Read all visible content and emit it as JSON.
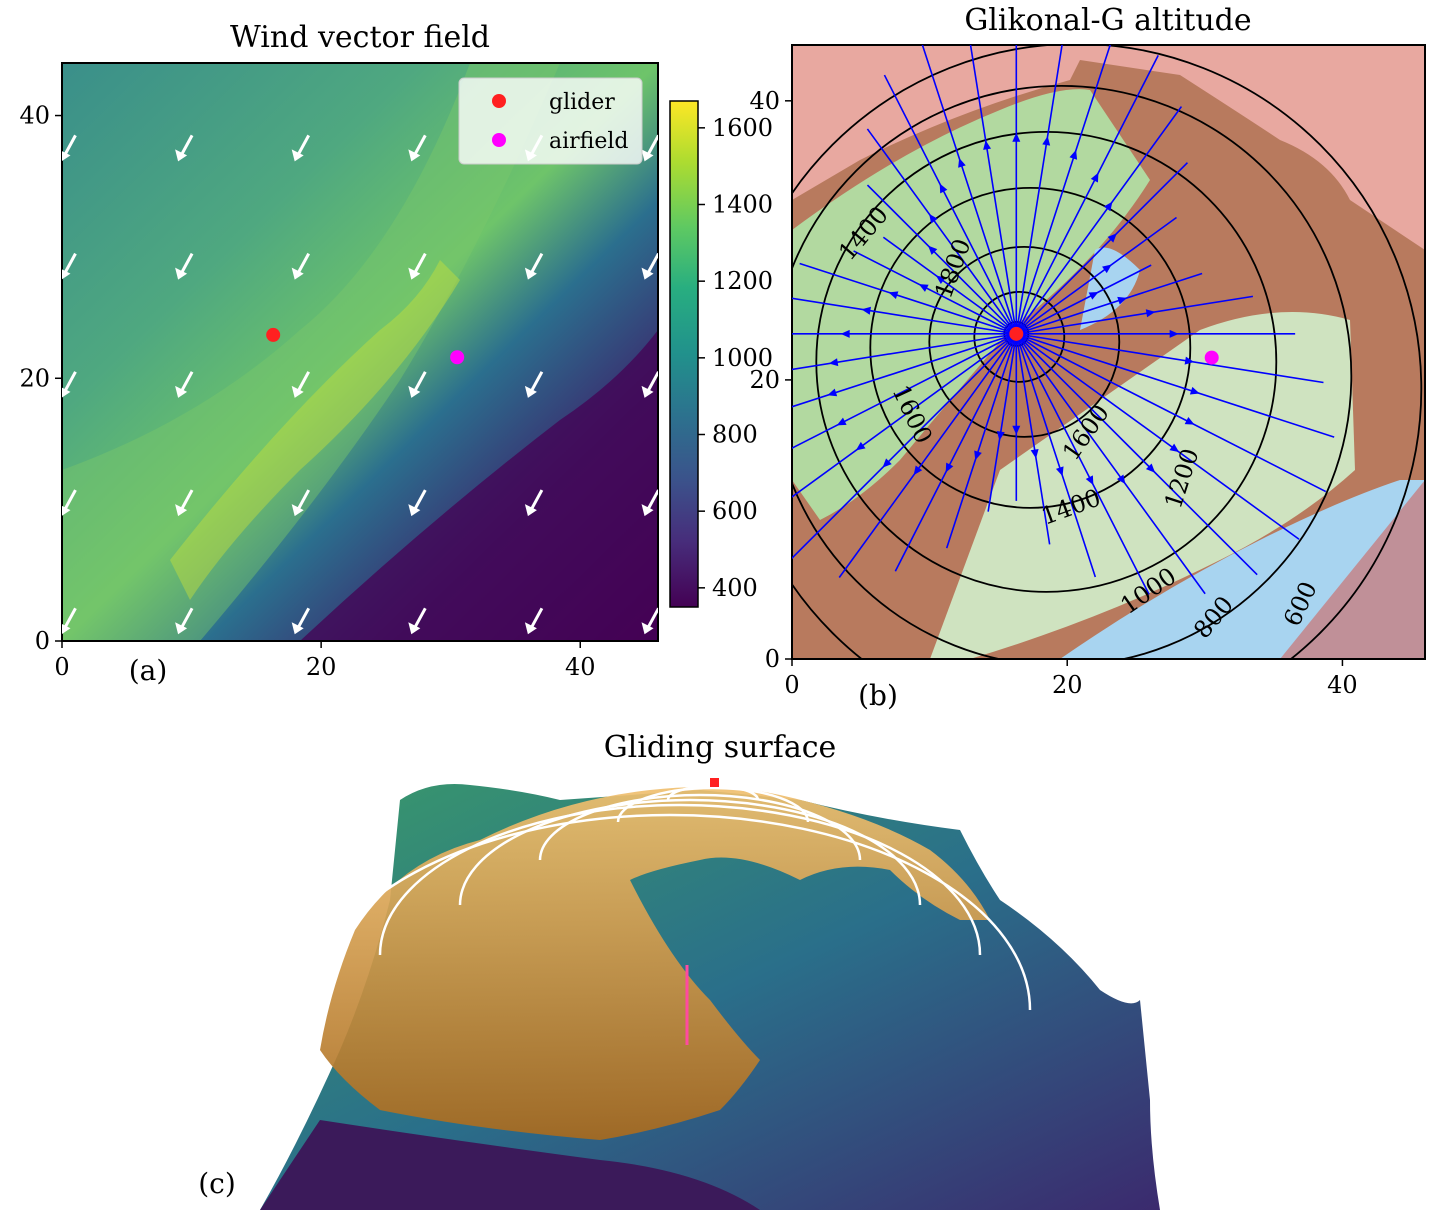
{
  "panels": {
    "a": {
      "title": "Wind vector field",
      "label": "(a)"
    },
    "b": {
      "title": "Glikonal-G altitude",
      "label": "(b)"
    },
    "c": {
      "title": "Gliding surface",
      "label": "(c)"
    }
  },
  "legend": {
    "glider": "glider",
    "airfield": "airfield"
  },
  "colors": {
    "glider": "#ff2020",
    "airfield": "#ff00ff",
    "streamlines": "#0000ff",
    "contours": "#000000",
    "wind_arrows": "#ffffff",
    "surface": "#e0a040",
    "map_forest": "#b2d9a0",
    "map_relief": "#b87a5e",
    "map_urban": "#f0a0a0",
    "lake": "#a8d4f0"
  },
  "chart_data": [
    {
      "panel": "a",
      "type": "heatmap",
      "title": "Wind vector field",
      "colormap": "viridis",
      "xlim": [
        0,
        46
      ],
      "ylim": [
        0,
        44
      ],
      "xticks": [
        "0",
        "20",
        "40"
      ],
      "yticks": [
        "0",
        "20",
        "40"
      ],
      "colorbar": {
        "range": [
          350,
          1670
        ],
        "ticks": [
          "400",
          "600",
          "800",
          "1000",
          "1200",
          "1400",
          "1600"
        ]
      },
      "points": [
        {
          "name": "glider",
          "x": 16.3,
          "y": 23.3
        },
        {
          "name": "airfield",
          "x": 30.5,
          "y": 21.6
        }
      ],
      "wind_arrows": {
        "direction": "towards south-west",
        "grid_x": [
          0.5,
          9.5,
          18.5,
          27.5,
          36.5,
          45.5
        ],
        "grid_y": [
          1.5,
          10.5,
          19.5,
          28.5,
          37.5
        ]
      },
      "legend_position": "top-right"
    },
    {
      "panel": "b",
      "type": "contour",
      "title": "Glikonal-G altitude",
      "xlim": [
        0,
        46
      ],
      "ylim": [
        0,
        44
      ],
      "xticks": [
        "0",
        "20",
        "40"
      ],
      "yticks": [
        "0",
        "20",
        "40"
      ],
      "contour_levels": [
        "1800",
        "1600",
        "1400",
        "1600",
        "1400",
        "1200",
        "1000",
        "800",
        "600"
      ],
      "points": [
        {
          "name": "glider",
          "x": 16.3,
          "y": 23.3
        },
        {
          "name": "airfield",
          "x": 30.5,
          "y": 21.6
        }
      ]
    },
    {
      "panel": "c",
      "type": "surface",
      "title": "Gliding surface"
    }
  ]
}
